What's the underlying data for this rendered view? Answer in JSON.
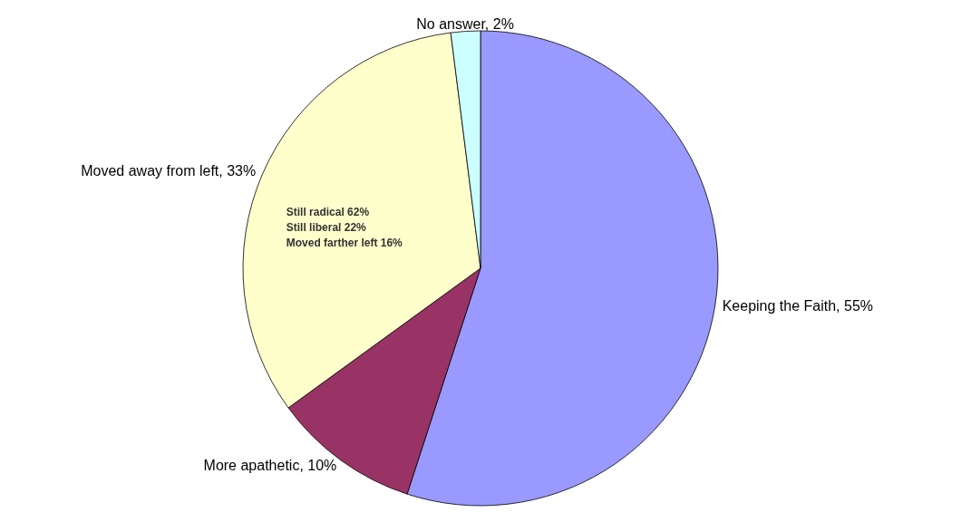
{
  "chart_data": {
    "type": "pie",
    "categories": [
      "Keeping the Faith",
      "More apathetic",
      "Moved away from left",
      "No answer"
    ],
    "values": [
      55,
      10,
      33,
      2
    ],
    "value_labels": [
      "55%",
      "10%",
      "33%",
      "2%"
    ],
    "colors": [
      "#9999ff",
      "#993366",
      "#ffffcc",
      "#ccffff"
    ],
    "annotations": [
      "Still radical 62%",
      "Still liberal 22%",
      "Moved farther left 16%"
    ]
  }
}
